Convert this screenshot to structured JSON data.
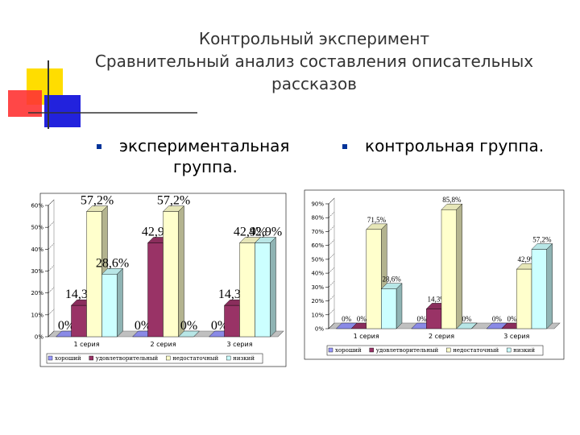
{
  "header": {
    "title": [
      "Контрольный эксперимент",
      "Сравнительный анализ составления описательных",
      "рассказов"
    ]
  },
  "bullets": [
    "экспериментальная группа.",
    "контрольная группа."
  ],
  "chart_data": [
    {
      "type": "bar",
      "categories": [
        "1 серия",
        "2 серия",
        "3 серия"
      ],
      "series": [
        {
          "name": "хороший",
          "color": "#9999ff",
          "values": [
            0,
            0,
            0
          ],
          "value_labels": [
            "0%",
            "0%",
            "0%"
          ]
        },
        {
          "name": "удовлетворительный",
          "color": "#993366",
          "values": [
            14.3,
            42.9,
            14.3
          ],
          "value_labels": [
            "14,3%",
            "42,9%",
            "14,3%"
          ]
        },
        {
          "name": "недостаточный",
          "color": "#ffffcc",
          "values": [
            57.2,
            57.2,
            42.9
          ],
          "value_labels": [
            "57,2%",
            "57,2%",
            "42,9%"
          ]
        },
        {
          "name": "низкий",
          "color": "#ccffff",
          "values": [
            28.6,
            0,
            42.9
          ],
          "value_labels": [
            "28,6%",
            "0%",
            "42,9%"
          ]
        }
      ],
      "ylim": [
        0,
        60
      ],
      "yticks": [
        {
          "value": 0,
          "label": "0%"
        },
        {
          "value": 10,
          "label": "10%"
        },
        {
          "value": 20,
          "label": "20%"
        },
        {
          "value": 30,
          "label": "30%"
        },
        {
          "value": 40,
          "label": "40%"
        },
        {
          "value": 50,
          "label": "50%"
        },
        {
          "value": 60,
          "label": "60%"
        }
      ]
    },
    {
      "type": "bar",
      "categories": [
        "1 серия",
        "2 серия",
        "3 серия"
      ],
      "series": [
        {
          "name": "хороший",
          "color": "#9999ff",
          "values": [
            0,
            0,
            0
          ],
          "value_labels": [
            "0%",
            "0%",
            "0%"
          ]
        },
        {
          "name": "удовлетворительный",
          "color": "#993366",
          "values": [
            0,
            14.3,
            0
          ],
          "value_labels": [
            "0%",
            "14,3%",
            "0%"
          ]
        },
        {
          "name": "недостаточный",
          "color": "#ffffcc",
          "values": [
            71.5,
            85.8,
            42.9
          ],
          "value_labels": [
            "71,5%",
            "85,8%",
            "42,9%"
          ]
        },
        {
          "name": "низкий",
          "color": "#ccffff",
          "values": [
            28.6,
            0,
            57.2
          ],
          "value_labels": [
            "28,6%",
            "0%",
            "57,2%"
          ]
        }
      ],
      "ylim": [
        0,
        90
      ],
      "yticks": [
        {
          "value": 0,
          "label": "0%"
        },
        {
          "value": 10,
          "label": "10%"
        },
        {
          "value": 20,
          "label": "20%"
        },
        {
          "value": 30,
          "label": "30%"
        },
        {
          "value": 40,
          "label": "40%"
        },
        {
          "value": 50,
          "label": "50%"
        },
        {
          "value": 60,
          "label": "60%"
        },
        {
          "value": 70,
          "label": "70%"
        },
        {
          "value": 80,
          "label": "80%"
        },
        {
          "value": 90,
          "label": "90%"
        }
      ]
    }
  ]
}
